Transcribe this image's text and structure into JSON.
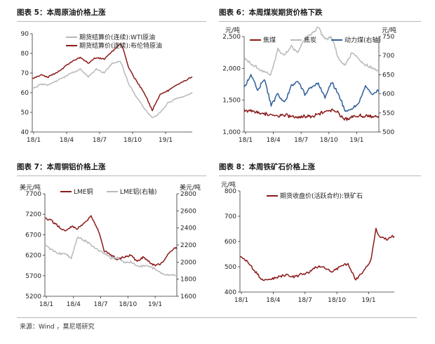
{
  "colors": {
    "dark_red": "#8b1a1a",
    "light_gray": "#b9b9b9",
    "blue": "#2f5f99",
    "axis": "#222222"
  },
  "source_text": "来源：Wind ，莫尼塔研究",
  "chart_data": [
    {
      "id": "fig5",
      "type": "line",
      "title": "图表 5：本周原油价格上涨",
      "x_ticks": [
        "18/1",
        "18/4",
        "18/7",
        "18/10",
        "19/1"
      ],
      "y_left": {
        "min": 40,
        "max": 90,
        "ticks": [
          40,
          50,
          60,
          70,
          80,
          90
        ]
      },
      "legend_position": "top-left",
      "series": [
        {
          "name": "期货结算价(连续):WTI原油",
          "color": "#b9b9b9",
          "axis": "left",
          "x": [
            0,
            5,
            10,
            15,
            20,
            25,
            30,
            35,
            40,
            45,
            50,
            55,
            57,
            60,
            65,
            70,
            75,
            80,
            85,
            90,
            95,
            100
          ],
          "values": [
            62,
            64,
            64,
            66,
            68,
            70,
            72,
            68,
            72,
            70,
            75,
            76,
            72,
            65,
            58,
            52,
            47,
            50,
            55,
            57,
            58,
            60
          ]
        },
        {
          "name": "期货结算价(连续):布伦特原油",
          "color": "#8b1a1a",
          "axis": "left",
          "x": [
            0,
            5,
            10,
            15,
            20,
            25,
            30,
            35,
            40,
            45,
            50,
            55,
            57,
            60,
            65,
            70,
            75,
            80,
            85,
            90,
            95,
            100
          ],
          "values": [
            67,
            69,
            68,
            70,
            73,
            76,
            78,
            75,
            78,
            77,
            81,
            85,
            82,
            73,
            66,
            60,
            51,
            59,
            61,
            64,
            66,
            68
          ]
        }
      ]
    },
    {
      "id": "fig6",
      "type": "line",
      "title": "图表 6：本周煤炭期货价格下跌",
      "x_ticks": [
        "18/1",
        "18/4",
        "18/7",
        "18/10",
        "19/1"
      ],
      "y_left": {
        "min": 1000,
        "max": 2500,
        "ticks": [
          1000,
          1500,
          2000,
          2500
        ],
        "tick_labels": [
          "1,000",
          "1,500",
          "2,000",
          "2,500"
        ],
        "unit": "元/吨"
      },
      "y_right": {
        "min": 500,
        "max": 750,
        "ticks": [
          500,
          550,
          600,
          650,
          700,
          750
        ],
        "unit": "元/吨"
      },
      "legend_position": "top",
      "series": [
        {
          "name": "焦煤",
          "color": "#8b1a1a",
          "axis": "left",
          "x": [
            0,
            10,
            20,
            30,
            40,
            50,
            55,
            60,
            65,
            70,
            75,
            80,
            85,
            90,
            100
          ],
          "values": [
            1350,
            1310,
            1260,
            1260,
            1230,
            1250,
            1280,
            1320,
            1350,
            1300,
            1200,
            1230,
            1260,
            1250,
            1250
          ]
        },
        {
          "name": "焦炭",
          "color": "#b9b9b9",
          "axis": "left",
          "x": [
            0,
            10,
            20,
            25,
            30,
            35,
            40,
            45,
            50,
            55,
            60,
            65,
            70,
            75,
            80,
            85,
            90,
            100
          ],
          "values": [
            2150,
            2000,
            1900,
            2300,
            2200,
            2350,
            2250,
            2450,
            2550,
            2650,
            2450,
            2500,
            2150,
            2050,
            2250,
            2150,
            2050,
            1950
          ]
        },
        {
          "name": "动力煤(右轴)",
          "color": "#2f5f99",
          "axis": "right",
          "x": [
            0,
            5,
            10,
            15,
            20,
            25,
            30,
            35,
            40,
            45,
            50,
            55,
            60,
            65,
            70,
            75,
            80,
            85,
            90,
            95,
            100
          ],
          "values": [
            615,
            650,
            610,
            640,
            570,
            600,
            575,
            620,
            635,
            600,
            620,
            628,
            590,
            630,
            600,
            555,
            560,
            575,
            620,
            600,
            610
          ]
        }
      ]
    },
    {
      "id": "fig7",
      "type": "line",
      "title": "图表 7：本周铜铝价格上涨",
      "x_ticks": [
        "18/1",
        "18/4",
        "18/7",
        "18/10",
        "19/1"
      ],
      "y_left": {
        "min": 5200,
        "max": 7700,
        "ticks": [
          5200,
          5700,
          6200,
          6700,
          7200,
          7700
        ],
        "unit": "美元/吨"
      },
      "y_right": {
        "min": 1600,
        "max": 2800,
        "ticks": [
          1600,
          1800,
          2000,
          2200,
          2400,
          2600,
          2800
        ],
        "unit": "美元/吨"
      },
      "legend_position": "top",
      "series": [
        {
          "name": "LME铜",
          "color": "#8b1a1a",
          "axis": "left",
          "x": [
            0,
            5,
            10,
            15,
            20,
            25,
            30,
            35,
            40,
            45,
            50,
            55,
            60,
            65,
            70,
            75,
            80,
            85,
            90,
            95,
            100
          ],
          "values": [
            7100,
            7050,
            6900,
            6800,
            6900,
            6850,
            7000,
            7150,
            6850,
            6300,
            6200,
            6100,
            6150,
            6200,
            6050,
            6150,
            6000,
            5950,
            6050,
            6300,
            6400
          ]
        },
        {
          "name": "LME铝(右轴)",
          "color": "#b9b9b9",
          "axis": "right",
          "x": [
            0,
            5,
            10,
            15,
            20,
            25,
            30,
            35,
            40,
            45,
            50,
            55,
            60,
            65,
            70,
            75,
            80,
            85,
            90,
            95,
            100
          ],
          "values": [
            2200,
            2150,
            2100,
            2100,
            2050,
            2300,
            2250,
            2200,
            2150,
            2100,
            2050,
            2050,
            2000,
            2000,
            1950,
            1950,
            1950,
            1900,
            1850,
            1850,
            1850
          ]
        }
      ]
    },
    {
      "id": "fig8",
      "type": "line",
      "title": "图表 8：本周铁矿石价格上涨",
      "x_ticks": [
        "18/1",
        "18/4",
        "18/7",
        "18/10",
        "19/1"
      ],
      "y_left": {
        "min": 400,
        "max": 800,
        "ticks": [
          400,
          500,
          600,
          700,
          800
        ],
        "unit": "元/吨"
      },
      "legend_position": "top",
      "series": [
        {
          "name": "期货收盘价(活跃合约):铁矿石",
          "color": "#8b1a1a",
          "axis": "left",
          "x": [
            0,
            5,
            10,
            15,
            20,
            25,
            30,
            35,
            40,
            45,
            50,
            55,
            60,
            65,
            70,
            75,
            80,
            85,
            88,
            90,
            95,
            100
          ],
          "values": [
            540,
            520,
            480,
            445,
            450,
            460,
            470,
            460,
            470,
            480,
            500,
            495,
            480,
            500,
            510,
            450,
            480,
            530,
            650,
            620,
            610,
            620
          ]
        }
      ]
    }
  ]
}
